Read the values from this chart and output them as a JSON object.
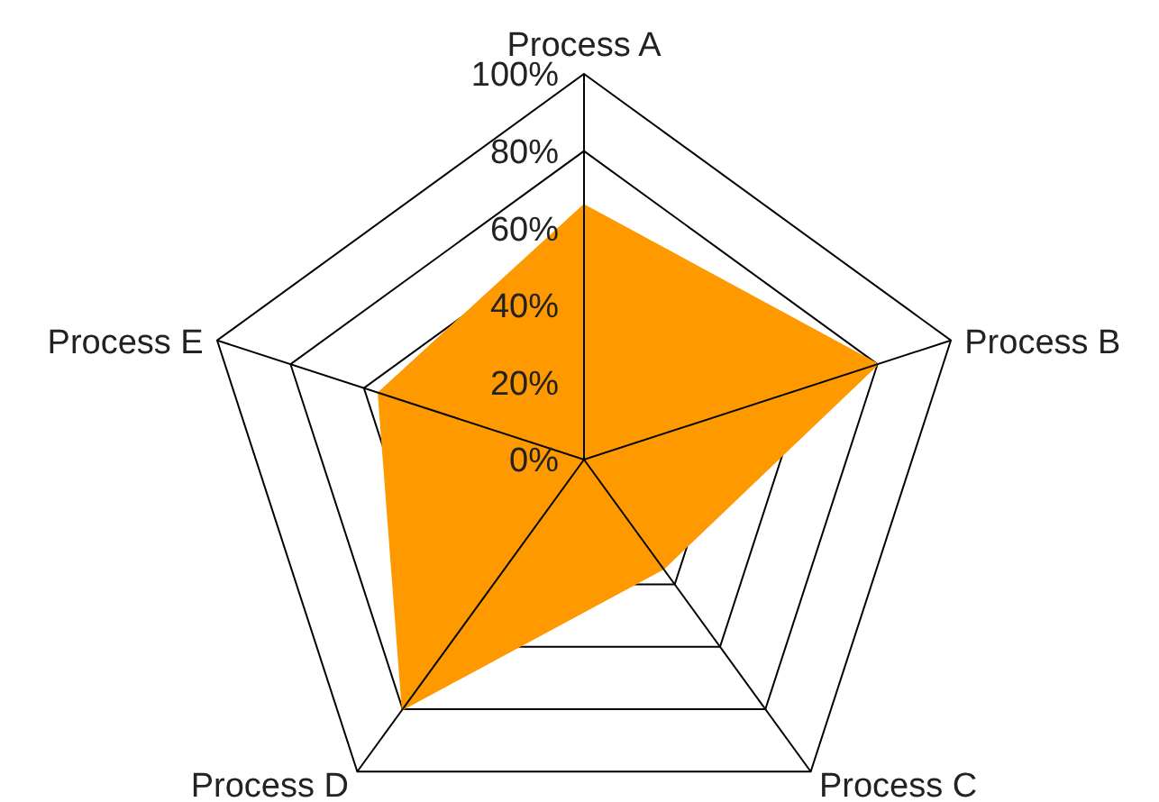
{
  "chart_data": {
    "type": "radar",
    "categories": [
      "Process A",
      "Process B",
      "Process C",
      "Process D",
      "Process E"
    ],
    "series": [
      {
        "color": "#ff9900",
        "values": [
          66,
          80,
          35,
          80,
          56
        ]
      }
    ],
    "ylim": [
      0,
      100
    ],
    "yticks": [
      {
        "value": 0,
        "label": "0%"
      },
      {
        "value": 20,
        "label": "20%"
      },
      {
        "value": 40,
        "label": "40%"
      },
      {
        "value": 60,
        "label": "60%"
      },
      {
        "value": 80,
        "label": "80%"
      },
      {
        "value": 100,
        "label": "100%"
      }
    ],
    "grid": true
  }
}
